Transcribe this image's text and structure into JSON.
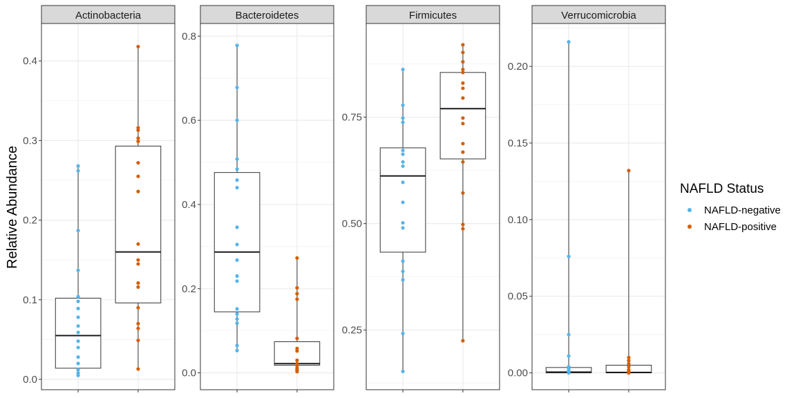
{
  "chart_data": {
    "type": "box",
    "ylabel": "Relative Abundance",
    "legend": {
      "title": "NAFLD Status",
      "placement": "right",
      "entries": [
        {
          "name": "NAFLD-negative",
          "color": "#56B4E9"
        },
        {
          "name": "NAFLD-positive",
          "color": "#D55E00"
        }
      ]
    },
    "grid": true,
    "panels": [
      {
        "title": "Actinobacteria",
        "ylim": [
          -0.013,
          0.447
        ],
        "yticks": [
          0.0,
          0.1,
          0.2,
          0.3,
          0.4
        ],
        "ytick_labels": [
          "0.0",
          "0.1",
          "0.2",
          "0.3",
          "0.4"
        ],
        "groups": [
          {
            "name": "NAFLD-negative",
            "box": {
              "q1": 0.014,
              "median": 0.055,
              "q3": 0.102,
              "min": 0.005,
              "max": 0.268
            },
            "points": [
              0.268,
              0.262,
              0.187,
              0.137,
              0.104,
              0.098,
              0.089,
              0.078,
              0.067,
              0.059,
              0.048,
              0.04,
              0.028,
              0.02,
              0.012,
              0.008,
              0.005
            ]
          },
          {
            "name": "NAFLD-positive",
            "box": {
              "q1": 0.096,
              "median": 0.16,
              "q3": 0.293,
              "min": 0.013,
              "max": 0.418
            },
            "points": [
              0.418,
              0.316,
              0.313,
              0.303,
              0.299,
              0.272,
              0.255,
              0.236,
              0.17,
              0.15,
              0.145,
              0.121,
              0.116,
              0.09,
              0.07,
              0.064,
              0.049,
              0.013
            ]
          }
        ]
      },
      {
        "title": "Bacteroidetes",
        "ylim": [
          -0.04,
          0.83
        ],
        "yticks": [
          0.0,
          0.2,
          0.4,
          0.6,
          0.8
        ],
        "ytick_labels": [
          "0.0",
          "0.2",
          "0.4",
          "0.6",
          "0.8"
        ],
        "groups": [
          {
            "name": "NAFLD-negative",
            "box": {
              "q1": 0.145,
              "median": 0.287,
              "q3": 0.476,
              "min": 0.053,
              "max": 0.778
            },
            "points": [
              0.778,
              0.678,
              0.6,
              0.508,
              0.484,
              0.458,
              0.44,
              0.346,
              0.305,
              0.268,
              0.23,
              0.218,
              0.152,
              0.14,
              0.128,
              0.118,
              0.065,
              0.053
            ]
          },
          {
            "name": "NAFLD-positive",
            "box": {
              "q1": 0.018,
              "median": 0.022,
              "q3": 0.074,
              "min": 0.003,
              "max": 0.273
            },
            "points": [
              0.273,
              0.202,
              0.188,
              0.175,
              0.082,
              0.058,
              0.052,
              0.03,
              0.022,
              0.018,
              0.012,
              0.008,
              0.005,
              0.003
            ]
          }
        ]
      },
      {
        "title": "Firmicutes",
        "ylim": [
          0.11,
          0.97
        ],
        "yticks": [
          0.25,
          0.5,
          0.75
        ],
        "ytick_labels": [
          "0.25",
          "0.50",
          "0.75"
        ],
        "groups": [
          {
            "name": "NAFLD-negative",
            "box": {
              "q1": 0.433,
              "median": 0.612,
              "q3": 0.678,
              "min": 0.153,
              "max": 0.862
            },
            "points": [
              0.862,
              0.778,
              0.748,
              0.738,
              0.672,
              0.663,
              0.645,
              0.635,
              0.597,
              0.55,
              0.502,
              0.49,
              0.412,
              0.388,
              0.368,
              0.242,
              0.153
            ]
          },
          {
            "name": "NAFLD-positive",
            "box": {
              "q1": 0.652,
              "median": 0.77,
              "q3": 0.855,
              "min": 0.225,
              "max": 0.92
            },
            "points": [
              0.92,
              0.902,
              0.88,
              0.862,
              0.855,
              0.83,
              0.818,
              0.795,
              0.748,
              0.735,
              0.688,
              0.668,
              0.645,
              0.572,
              0.498,
              0.488,
              0.225
            ]
          }
        ]
      },
      {
        "title": "Verrucomicrobia",
        "ylim": [
          -0.011,
          0.228
        ],
        "yticks": [
          0.0,
          0.05,
          0.1,
          0.15,
          0.2
        ],
        "ytick_labels": [
          "0.00",
          "0.05",
          "0.10",
          "0.15",
          "0.20"
        ],
        "groups": [
          {
            "name": "NAFLD-negative",
            "box": {
              "q1": 0.0,
              "median": 0.0005,
              "q3": 0.0035,
              "min": 0.0,
              "max": 0.216
            },
            "points": [
              0.216,
              0.076,
              0.025,
              0.011,
              0.004,
              0.003,
              0.002,
              0.001,
              0.0005,
              0.0,
              0.0
            ]
          },
          {
            "name": "NAFLD-positive",
            "box": {
              "q1": 0.0,
              "median": 0.0003,
              "q3": 0.005,
              "min": 0.0,
              "max": 0.132
            },
            "points": [
              0.132,
              0.01,
              0.008,
              0.006,
              0.004,
              0.002,
              0.001,
              0.0005,
              0.0,
              0.0
            ]
          }
        ]
      }
    ]
  }
}
